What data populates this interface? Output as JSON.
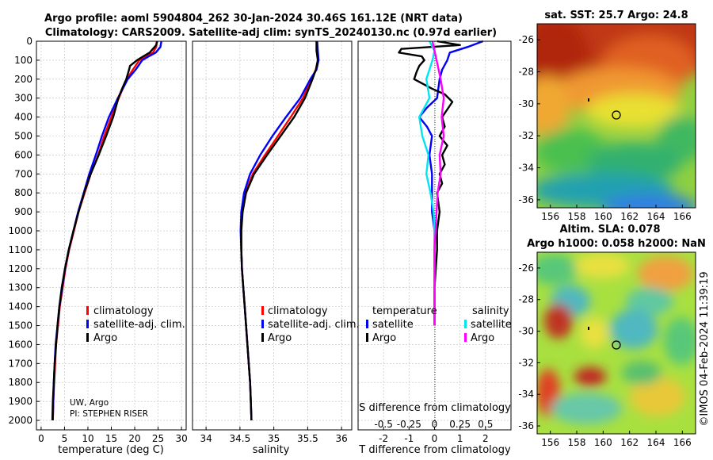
{
  "figure": {
    "title_line1": "Argo profile: aoml 5904804_262 30-Jan-2024 30.46S 161.12E (NRT data)",
    "title_line2": "Climatology: CARS2009. Satellite-adj clim: synTS_20240130.nc (0.97d earlier)",
    "credit_line1": "UW, Argo",
    "credit_line2": "PI: STEPHEN RISER",
    "timestamp": "©IMOS 04-Feb-2024 11:39:19"
  },
  "colors": {
    "climatology": "#ff0000",
    "satellite": "#0000ff",
    "argo": "#000000",
    "sat_salinity": "#00e5ee",
    "argo_salinity": "#ff00ff"
  },
  "chart_data": [
    {
      "id": "temperature",
      "type": "line",
      "xlabel": "temperature (deg C)",
      "xlim": [
        -1,
        31
      ],
      "ylim": [
        2050,
        0
      ],
      "xticks": [
        0,
        5,
        10,
        15,
        20,
        25,
        30
      ],
      "yticks": [
        0,
        100,
        200,
        300,
        400,
        500,
        600,
        700,
        800,
        900,
        1000,
        1100,
        1200,
        1300,
        1400,
        1500,
        1600,
        1700,
        1800,
        1900,
        2000
      ],
      "legend": [
        "climatology",
        "satellite-adj. clim.",
        "Argo"
      ],
      "series": [
        {
          "name": "climatology",
          "color": "#ff0000",
          "points": [
            [
              24.7,
              0
            ],
            [
              24.6,
              30
            ],
            [
              23.9,
              60
            ],
            [
              22.5,
              80
            ],
            [
              21.0,
              100
            ],
            [
              19.6,
              150
            ],
            [
              18.3,
              200
            ],
            [
              16.6,
              300
            ],
            [
              15.0,
              400
            ],
            [
              13.5,
              500
            ],
            [
              12.2,
              600
            ],
            [
              10.6,
              700
            ],
            [
              9.3,
              800
            ],
            [
              8.0,
              900
            ],
            [
              7.0,
              1000
            ],
            [
              6.0,
              1100
            ],
            [
              5.2,
              1200
            ],
            [
              4.6,
              1300
            ],
            [
              4.0,
              1400
            ],
            [
              3.6,
              1500
            ],
            [
              3.2,
              1600
            ],
            [
              3.0,
              1700
            ],
            [
              2.8,
              1800
            ],
            [
              2.6,
              1900
            ],
            [
              2.5,
              2000
            ]
          ]
        },
        {
          "name": "satellite-adj. clim.",
          "color": "#0000ff",
          "points": [
            [
              25.7,
              0
            ],
            [
              25.5,
              30
            ],
            [
              24.5,
              60
            ],
            [
              23.0,
              80
            ],
            [
              21.6,
              100
            ],
            [
              20.2,
              150
            ],
            [
              18.5,
              200
            ],
            [
              16.4,
              300
            ],
            [
              14.5,
              400
            ],
            [
              13.0,
              500
            ],
            [
              11.7,
              600
            ],
            [
              10.3,
              700
            ],
            [
              9.1,
              800
            ],
            [
              7.9,
              900
            ],
            [
              6.9,
              1000
            ],
            [
              5.9,
              1100
            ],
            [
              5.1,
              1200
            ],
            [
              4.5,
              1300
            ],
            [
              3.9,
              1400
            ],
            [
              3.5,
              1500
            ],
            [
              3.1,
              1600
            ],
            [
              2.9,
              1700
            ],
            [
              2.7,
              1800
            ],
            [
              2.6,
              1900
            ],
            [
              2.5,
              2000
            ]
          ]
        },
        {
          "name": "Argo",
          "color": "#000000",
          "points": [
            [
              24.8,
              0
            ],
            [
              24.6,
              20
            ],
            [
              23.2,
              60
            ],
            [
              21.8,
              80
            ],
            [
              20.5,
              100
            ],
            [
              19.0,
              130
            ],
            [
              18.8,
              150
            ],
            [
              18.2,
              200
            ],
            [
              17.3,
              250
            ],
            [
              16.5,
              300
            ],
            [
              15.4,
              400
            ],
            [
              13.9,
              500
            ],
            [
              12.3,
              600
            ],
            [
              10.6,
              700
            ],
            [
              9.2,
              800
            ],
            [
              8.0,
              900
            ],
            [
              6.9,
              1000
            ],
            [
              5.9,
              1100
            ],
            [
              5.1,
              1200
            ],
            [
              4.4,
              1300
            ],
            [
              3.9,
              1400
            ],
            [
              3.5,
              1500
            ],
            [
              3.2,
              1600
            ],
            [
              2.9,
              1700
            ],
            [
              2.7,
              1800
            ],
            [
              2.5,
              1900
            ],
            [
              2.4,
              2000
            ]
          ]
        }
      ]
    },
    {
      "id": "salinity",
      "type": "line",
      "xlabel": "salinity",
      "xlim": [
        33.8,
        36.15
      ],
      "ylim": [
        2050,
        0
      ],
      "xticks": [
        34,
        34.5,
        35,
        35.5,
        36
      ],
      "legend": [
        "climatology",
        "satellite-adj. clim.",
        "Argo"
      ],
      "series": [
        {
          "name": "climatology",
          "color": "#ff0000",
          "points": [
            [
              35.63,
              0
            ],
            [
              35.64,
              50
            ],
            [
              35.65,
              100
            ],
            [
              35.62,
              150
            ],
            [
              35.55,
              200
            ],
            [
              35.43,
              300
            ],
            [
              35.25,
              400
            ],
            [
              35.06,
              500
            ],
            [
              34.87,
              600
            ],
            [
              34.69,
              700
            ],
            [
              34.58,
              800
            ],
            [
              34.53,
              900
            ],
            [
              34.52,
              1000
            ],
            [
              34.52,
              1100
            ],
            [
              34.53,
              1200
            ],
            [
              34.55,
              1300
            ],
            [
              34.57,
              1400
            ],
            [
              34.59,
              1500
            ],
            [
              34.61,
              1600
            ],
            [
              34.63,
              1700
            ],
            [
              34.65,
              1800
            ],
            [
              34.66,
              1900
            ],
            [
              34.67,
              2000
            ]
          ]
        },
        {
          "name": "satellite-adj. clim.",
          "color": "#0000ff",
          "points": [
            [
              35.64,
              0
            ],
            [
              35.65,
              50
            ],
            [
              35.66,
              100
            ],
            [
              35.63,
              150
            ],
            [
              35.54,
              200
            ],
            [
              35.39,
              300
            ],
            [
              35.18,
              400
            ],
            [
              34.98,
              500
            ],
            [
              34.8,
              600
            ],
            [
              34.65,
              700
            ],
            [
              34.56,
              800
            ],
            [
              34.52,
              900
            ],
            [
              34.51,
              1000
            ],
            [
              34.52,
              1100
            ],
            [
              34.53,
              1200
            ],
            [
              34.55,
              1300
            ],
            [
              34.57,
              1400
            ],
            [
              34.59,
              1500
            ],
            [
              34.61,
              1600
            ],
            [
              34.63,
              1700
            ],
            [
              34.65,
              1800
            ],
            [
              34.66,
              1900
            ],
            [
              34.67,
              2000
            ]
          ]
        },
        {
          "name": "Argo",
          "color": "#000000",
          "points": [
            [
              35.63,
              0
            ],
            [
              35.63,
              50
            ],
            [
              35.65,
              100
            ],
            [
              35.62,
              150
            ],
            [
              35.57,
              200
            ],
            [
              35.46,
              300
            ],
            [
              35.3,
              400
            ],
            [
              35.1,
              500
            ],
            [
              34.9,
              600
            ],
            [
              34.71,
              700
            ],
            [
              34.59,
              800
            ],
            [
              34.54,
              900
            ],
            [
              34.52,
              1000
            ],
            [
              34.52,
              1100
            ],
            [
              34.53,
              1200
            ],
            [
              34.55,
              1300
            ],
            [
              34.57,
              1400
            ],
            [
              34.59,
              1500
            ],
            [
              34.61,
              1600
            ],
            [
              34.63,
              1700
            ],
            [
              34.65,
              1800
            ],
            [
              34.66,
              1900
            ],
            [
              34.67,
              2000
            ]
          ]
        }
      ]
    },
    {
      "id": "difference",
      "type": "line",
      "xlabel": "T difference from climatology",
      "xlabel_top": "S difference from climatology",
      "xlim": [
        -3,
        3
      ],
      "ylim": [
        2050,
        0
      ],
      "xticks": [
        -2,
        -1,
        0,
        1,
        2
      ],
      "xticks_s": [
        "-0.5",
        "-0.25",
        "0",
        "0.25",
        "0.5"
      ],
      "legend_t_title": "temperature",
      "legend_s_title": "salinity",
      "legend_t": [
        "satellite",
        "Argo"
      ],
      "legend_s": [
        "satellite",
        "Argo"
      ],
      "series": [
        {
          "name": "T satellite",
          "color": "#0000ff",
          "points": [
            [
              1.9,
              0
            ],
            [
              1.3,
              30
            ],
            [
              0.6,
              60
            ],
            [
              0.5,
              100
            ],
            [
              0.3,
              150
            ],
            [
              0.2,
              200
            ],
            [
              0.1,
              300
            ],
            [
              -0.3,
              350
            ],
            [
              -0.6,
              400
            ],
            [
              -0.3,
              450
            ],
            [
              -0.1,
              500
            ],
            [
              -0.2,
              600
            ],
            [
              -0.1,
              700
            ],
            [
              -0.1,
              800
            ],
            [
              -0.1,
              900
            ],
            [
              0,
              1000
            ],
            [
              0,
              1100
            ],
            [
              0,
              1200
            ],
            [
              0,
              1300
            ],
            [
              0,
              1400
            ],
            [
              0,
              1500
            ]
          ]
        },
        {
          "name": "T Argo",
          "color": "#000000",
          "points": [
            [
              0.1,
              0
            ],
            [
              1.0,
              20
            ],
            [
              -1.3,
              40
            ],
            [
              -1.4,
              60
            ],
            [
              -0.5,
              80
            ],
            [
              -0.4,
              100
            ],
            [
              -0.6,
              130
            ],
            [
              -0.7,
              160
            ],
            [
              -0.8,
              200
            ],
            [
              -0.1,
              250
            ],
            [
              0.4,
              280
            ],
            [
              0.7,
              320
            ],
            [
              0.5,
              360
            ],
            [
              0.3,
              400
            ],
            [
              0.4,
              450
            ],
            [
              0.2,
              500
            ],
            [
              0.5,
              550
            ],
            [
              0.3,
              600
            ],
            [
              0.4,
              650
            ],
            [
              0.2,
              700
            ],
            [
              0.3,
              750
            ],
            [
              0.1,
              800
            ],
            [
              0.2,
              900
            ],
            [
              0.1,
              1000
            ],
            [
              0.1,
              1100
            ],
            [
              0.05,
              1200
            ],
            [
              0.0,
              1300
            ],
            [
              0.0,
              1400
            ],
            [
              0.0,
              1500
            ]
          ]
        },
        {
          "name": "S satellite",
          "color": "#00e5ee",
          "points": [
            [
              -0.05,
              0
            ],
            [
              0.0,
              50
            ],
            [
              -0.02,
              100
            ],
            [
              -0.08,
              200
            ],
            [
              -0.05,
              300
            ],
            [
              -0.15,
              400
            ],
            [
              -0.12,
              500
            ],
            [
              -0.06,
              600
            ],
            [
              -0.08,
              700
            ],
            [
              -0.04,
              800
            ],
            [
              -0.01,
              900
            ],
            [
              0.0,
              1000
            ],
            [
              0.0,
              1100
            ],
            [
              0.0,
              1200
            ],
            [
              0.0,
              1300
            ],
            [
              0.0,
              1400
            ],
            [
              0.0,
              1500
            ]
          ]
        },
        {
          "name": "S Argo",
          "color": "#ff00ff",
          "points": [
            [
              -0.02,
              0
            ],
            [
              0.0,
              50
            ],
            [
              0.02,
              100
            ],
            [
              0.06,
              200
            ],
            [
              0.09,
              300
            ],
            [
              0.07,
              400
            ],
            [
              0.09,
              500
            ],
            [
              0.05,
              600
            ],
            [
              0.06,
              700
            ],
            [
              0.03,
              800
            ],
            [
              0.02,
              900
            ],
            [
              0.01,
              1000
            ],
            [
              0.0,
              1100
            ],
            [
              0.0,
              1200
            ],
            [
              0.0,
              1300
            ],
            [
              0.0,
              1400
            ],
            [
              0.0,
              1500
            ]
          ]
        }
      ]
    },
    {
      "id": "sst_map",
      "type": "heatmap",
      "title": "sat. SST: 25.7 Argo: 24.8",
      "xlim": [
        155,
        167
      ],
      "ylim": [
        -36.5,
        -25
      ],
      "xticks": [
        156,
        158,
        160,
        162,
        164,
        166
      ],
      "yticks": [
        -26,
        -28,
        -30,
        -32,
        -34,
        -36
      ],
      "argo_position": [
        161.12,
        -30.46
      ]
    },
    {
      "id": "sla_map",
      "type": "heatmap",
      "title_line1": "Altim. SLA: 0.078",
      "title_line2": "Argo h1000: 0.058 h2000: NaN",
      "xlim": [
        155,
        167
      ],
      "ylim": [
        -36.5,
        -25
      ],
      "xticks": [
        156,
        158,
        160,
        162,
        164,
        166
      ],
      "yticks": [
        -26,
        -28,
        -30,
        -32,
        -34,
        -36
      ],
      "argo_position": [
        161.12,
        -30.46
      ]
    }
  ]
}
